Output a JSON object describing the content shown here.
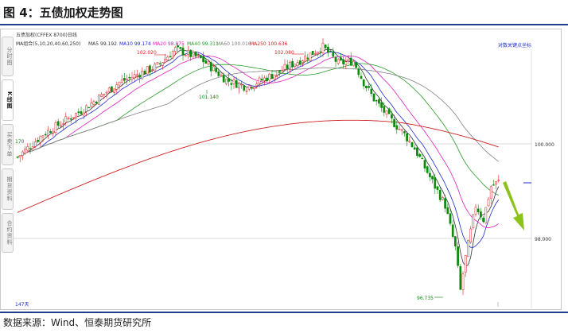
{
  "title": "图 4：五债加权走势图",
  "source": "数据来源：Wind、恒泰期货研究所",
  "side_tabs": [
    "分时图",
    "K线图",
    "买卖下单",
    "期货资料",
    "合约资料"
  ],
  "active_tab": 1,
  "chart_data": {
    "type": "candlestick",
    "instrument": "五债加权(CFFEX 8700)日线",
    "ma_legend": [
      {
        "label": "MA组合(5,10,20,40,60,250)",
        "color": "#333333"
      },
      {
        "label": "MA5 99.192",
        "color": "#333333"
      },
      {
        "label": "MA10 99.174",
        "color": "#1a2ad0"
      },
      {
        "label": "MA20 98.875",
        "color": "#e020c0"
      },
      {
        "label": "MA40 99.311",
        "color": "#2a9a2a"
      },
      {
        "label": "MA60 100.016",
        "color": "#808080"
      },
      {
        "label": "MA250 100.636",
        "color": "#d02020"
      }
    ],
    "right_top_label": "对数关键点坐标",
    "y_ticks": [
      {
        "value": 100.0,
        "label": "100.000"
      },
      {
        "value": 98.0,
        "label": "98.000"
      }
    ],
    "annotations": [
      {
        "text": "102.020",
        "kind": "high"
      },
      {
        "text": "101.140",
        "kind": "low"
      },
      {
        "text": "102.080",
        "kind": "high"
      },
      {
        "text": "96.735",
        "kind": "low"
      },
      {
        "text": "170",
        "kind": "left"
      },
      {
        "text": "147天",
        "kind": "left"
      }
    ],
    "colors": {
      "up": "#e02020",
      "down": "#0a8a0a",
      "arrow": "#8cc21a"
    }
  }
}
